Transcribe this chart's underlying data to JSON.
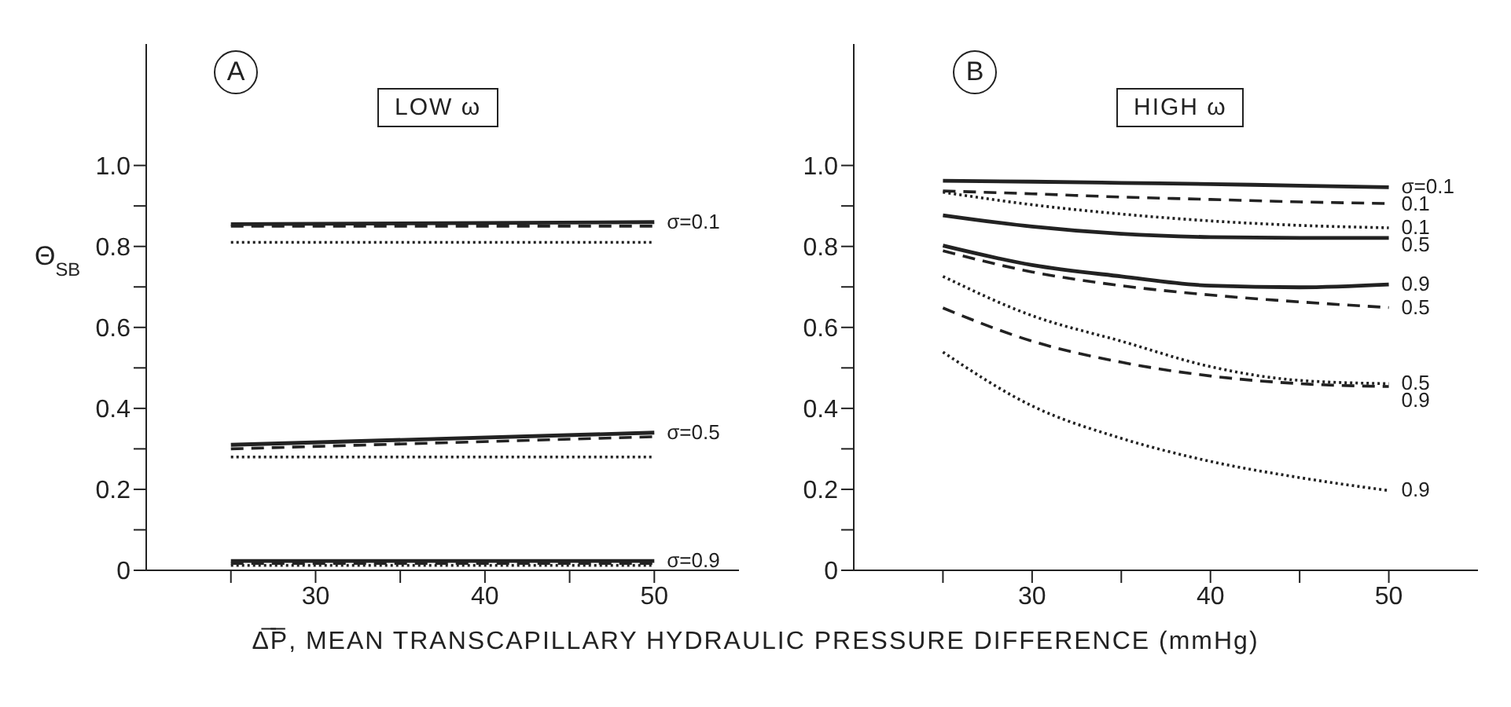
{
  "chart_data": [
    {
      "type": "line",
      "title": "A",
      "subtitle": "LOW ω",
      "ylabel": "Θ$_{SB}$",
      "xlabel": "Δ̅P̅, MEAN TRANSCAPILLARY HYDRAULIC PRESSURE DIFFERENCE (mmHg)",
      "x": [
        25,
        50
      ],
      "series": [
        {
          "name": "σ=0.1",
          "color": "#222222",
          "line_style": "solid",
          "values": [
            0.855,
            0.86
          ]
        },
        {
          "color": "#222222",
          "line_style": "dashed",
          "values": [
            0.85,
            0.85
          ]
        },
        {
          "color": "#222222",
          "line_style": "dotted",
          "values": [
            0.81,
            0.81
          ]
        },
        {
          "name": "σ=0.5",
          "color": "#222222",
          "line_style": "solid",
          "values": [
            0.31,
            0.34
          ]
        },
        {
          "color": "#222222",
          "line_style": "dashed",
          "values": [
            0.3,
            0.33
          ]
        },
        {
          "color": "#222222",
          "line_style": "dotted",
          "values": [
            0.28,
            0.28
          ]
        },
        {
          "name": "σ=0.9",
          "color": "#222222",
          "line_style": "solid",
          "values": [
            0.023,
            0.023
          ]
        },
        {
          "color": "#222222",
          "line_style": "dashed",
          "values": [
            0.017,
            0.017
          ]
        },
        {
          "color": "#222222",
          "line_style": "dotted",
          "values": [
            0.012,
            0.012
          ]
        }
      ],
      "xlim": [
        20,
        55
      ],
      "xticks": [
        {
          "value": 25,
          "label": null
        },
        30,
        {
          "value": 35,
          "label": null
        },
        40,
        {
          "value": 45,
          "label": null
        },
        50
      ],
      "ylim": [
        0,
        1.3
      ],
      "yticks": [
        0,
        {
          "value": 0.1,
          "label": null
        },
        0.2,
        {
          "value": 0.3,
          "label": null
        },
        0.4,
        {
          "value": 0.5,
          "label": null
        },
        0.6,
        {
          "value": 0.7,
          "label": null
        },
        0.8,
        {
          "value": 0.9,
          "label": null
        },
        {
          "value": 1,
          "label": "1.0"
        }
      ]
    },
    {
      "type": "line",
      "title": "B",
      "subtitle": "HIGH ω",
      "x": [
        25,
        30,
        35,
        40,
        45,
        50
      ],
      "series": [
        {
          "name": "σ=0.1",
          "color": "#222222",
          "line_style": "solid",
          "values": [
            0.962,
            0.96,
            0.957,
            0.954,
            0.95,
            0.946
          ]
        },
        {
          "name": "0.1",
          "color": "#222222",
          "line_style": "dashed",
          "values": [
            0.937,
            0.93,
            0.922,
            0.916,
            0.91,
            0.906
          ]
        },
        {
          "name": "0.1",
          "color": "#222222",
          "line_style": "dotted",
          "values": [
            0.934,
            0.903,
            0.88,
            0.863,
            0.852,
            0.846
          ]
        },
        {
          "name": "0.5",
          "color": "#222222",
          "line_style": "solid",
          "values": [
            0.877,
            0.849,
            0.831,
            0.823,
            0.821,
            0.821
          ]
        },
        {
          "name": "0.9",
          "color": "#222222",
          "line_style": "solid",
          "values": [
            0.802,
            0.754,
            0.726,
            0.703,
            0.699,
            0.706
          ]
        },
        {
          "name": "0.5",
          "color": "#222222",
          "line_style": "dashed",
          "values": [
            0.789,
            0.737,
            0.703,
            0.68,
            0.663,
            0.649
          ]
        },
        {
          "name": "0.5",
          "color": "#222222",
          "line_style": "dotted",
          "values": [
            0.726,
            0.629,
            0.566,
            0.503,
            0.469,
            0.461
          ]
        },
        {
          "name": "0.9",
          "color": "#222222",
          "line_style": "dashed",
          "values": [
            0.648,
            0.566,
            0.514,
            0.48,
            0.461,
            0.454
          ]
        },
        {
          "name": "0.9",
          "color": "#222222",
          "line_style": "dotted",
          "values": [
            0.539,
            0.406,
            0.326,
            0.269,
            0.229,
            0.197
          ]
        }
      ],
      "xlim": [
        20,
        55
      ],
      "xticks": [
        {
          "value": 25,
          "label": null
        },
        30,
        {
          "value": 35,
          "label": null
        },
        40,
        {
          "value": 45,
          "label": null
        },
        50
      ],
      "ylim": [
        0,
        1.3
      ],
      "yticks": [
        0,
        {
          "value": 0.1,
          "label": null
        },
        0.2,
        {
          "value": 0.3,
          "label": null
        },
        0.4,
        {
          "value": 0.5,
          "label": null
        },
        0.6,
        {
          "value": 0.7,
          "label": null
        },
        0.8,
        {
          "value": 0.9,
          "label": null
        },
        {
          "value": 1,
          "label": "1.0"
        }
      ]
    }
  ]
}
